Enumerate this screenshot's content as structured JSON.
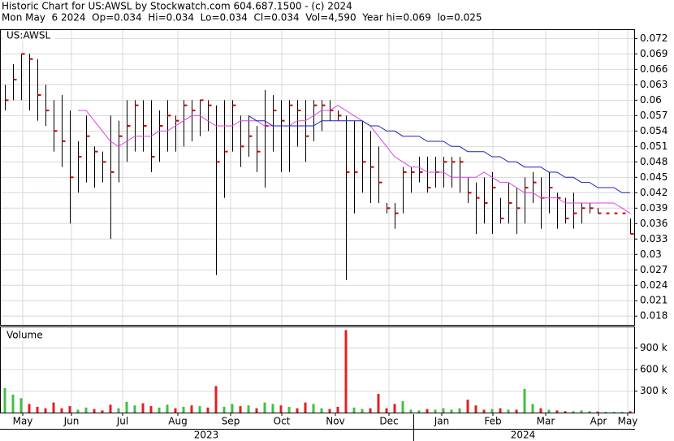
{
  "chart_data": [
    {
      "type": "ohlc",
      "title": "Historic Chart for US:AWSL by Stockwatch.com 604.687.1500 - (c) 2024",
      "subtitle": "Mon May  6 2024  Op=0.034  Hi=0.034  Lo=0.034  Cl=0.034  Vol=4,590  Year hi=0.069  lo=0.025",
      "label": "US:AWSL",
      "ylim": [
        0.0163,
        0.0738
      ],
      "yticks": [
        0.072,
        0.069,
        0.066,
        0.063,
        0.06,
        0.057,
        0.054,
        0.051,
        0.048,
        0.045,
        0.042,
        0.039,
        0.036,
        0.033,
        0.03,
        0.027,
        0.024,
        0.021,
        0.018
      ],
      "xlim": [
        0,
        78
      ],
      "bar_color": "#000000",
      "close_color": "#d00000",
      "high": [
        0.063,
        0.067,
        0.069,
        0.069,
        0.068,
        0.063,
        0.06,
        0.061,
        0.058,
        0.052,
        0.057,
        0.051,
        0.05,
        0.057,
        0.056,
        0.06,
        0.06,
        0.06,
        0.06,
        0.058,
        0.06,
        0.057,
        0.06,
        0.06,
        0.06,
        0.06,
        0.059,
        0.06,
        0.06,
        0.057,
        0.057,
        0.055,
        0.062,
        0.061,
        0.06,
        0.06,
        0.06,
        0.06,
        0.06,
        0.06,
        0.06,
        0.058,
        0.057,
        0.056,
        0.056,
        0.054,
        0.051,
        0.04,
        0.04,
        0.047,
        0.047,
        0.049,
        0.049,
        0.049,
        0.049,
        0.049,
        0.049,
        0.045,
        0.044,
        0.045,
        0.046,
        0.041,
        0.044,
        0.043,
        0.045,
        0.046,
        0.045,
        0.046,
        0.042,
        0.041,
        0.042,
        0.04,
        0.04,
        0.039,
        0.038,
        0.038,
        0.038,
        0.037
      ],
      "low": [
        0.058,
        0.06,
        0.06,
        0.058,
        0.056,
        0.055,
        0.05,
        0.047,
        0.036,
        0.042,
        0.044,
        0.043,
        0.044,
        0.033,
        0.044,
        0.048,
        0.05,
        0.05,
        0.046,
        0.048,
        0.05,
        0.05,
        0.051,
        0.052,
        0.053,
        0.054,
        0.026,
        0.041,
        0.05,
        0.047,
        0.049,
        0.046,
        0.043,
        0.05,
        0.046,
        0.046,
        0.051,
        0.048,
        0.052,
        0.054,
        0.056,
        0.056,
        0.025,
        0.038,
        0.042,
        0.04,
        0.04,
        0.038,
        0.035,
        0.038,
        0.042,
        0.044,
        0.042,
        0.043,
        0.043,
        0.043,
        0.042,
        0.04,
        0.034,
        0.036,
        0.034,
        0.036,
        0.036,
        0.034,
        0.036,
        0.04,
        0.035,
        0.038,
        0.035,
        0.036,
        0.035,
        0.036,
        0.038,
        0.038,
        0.038,
        0.038,
        0.038,
        0.034
      ],
      "close": [
        0.06,
        0.064,
        0.069,
        0.068,
        0.061,
        0.058,
        0.054,
        0.052,
        0.045,
        0.049,
        0.053,
        0.05,
        0.048,
        0.046,
        0.053,
        0.055,
        0.059,
        0.055,
        0.049,
        0.055,
        0.057,
        0.056,
        0.059,
        0.058,
        0.06,
        0.059,
        0.048,
        0.05,
        0.059,
        0.051,
        0.053,
        0.05,
        0.055,
        0.058,
        0.056,
        0.059,
        0.058,
        0.053,
        0.059,
        0.059,
        0.058,
        0.057,
        0.046,
        0.046,
        0.048,
        0.047,
        0.044,
        0.039,
        0.038,
        0.046,
        0.046,
        0.046,
        0.043,
        0.046,
        0.048,
        0.048,
        0.048,
        0.042,
        0.041,
        0.04,
        0.043,
        0.037,
        0.04,
        0.039,
        0.043,
        0.044,
        0.041,
        0.043,
        0.041,
        0.037,
        0.038,
        0.039,
        0.039,
        0.038,
        0.038,
        0.038,
        0.038,
        0.034
      ],
      "lines": [
        {
          "color": "#e040e0",
          "values": [
            null,
            null,
            null,
            null,
            null,
            null,
            null,
            null,
            null,
            0.058,
            0.058,
            0.056,
            0.054,
            0.052,
            0.051,
            0.052,
            0.053,
            0.053,
            0.053,
            0.054,
            0.054,
            0.055,
            0.056,
            0.057,
            0.057,
            0.056,
            0.055,
            0.055,
            0.055,
            0.056,
            0.056,
            0.056,
            0.055,
            0.055,
            0.055,
            0.055,
            0.056,
            0.056,
            0.057,
            0.058,
            0.058,
            0.059,
            0.058,
            0.057,
            0.056,
            0.055,
            0.053,
            0.051,
            0.049,
            0.048,
            0.047,
            0.047,
            0.046,
            0.046,
            0.046,
            0.045,
            0.045,
            0.045,
            0.045,
            0.046,
            0.045,
            0.044,
            0.044,
            0.043,
            0.042,
            0.042,
            0.041,
            0.041,
            0.041,
            0.04,
            0.04,
            0.04,
            0.04,
            0.04,
            0.04,
            0.04,
            0.039,
            0.038
          ]
        },
        {
          "color": "#2020c0",
          "values": [
            null,
            null,
            null,
            null,
            null,
            null,
            null,
            null,
            null,
            null,
            null,
            null,
            null,
            null,
            null,
            null,
            null,
            null,
            null,
            null,
            null,
            null,
            null,
            null,
            null,
            null,
            null,
            null,
            null,
            null,
            0.057,
            0.056,
            0.056,
            0.055,
            0.055,
            0.055,
            0.055,
            0.055,
            0.055,
            0.056,
            0.056,
            0.056,
            0.056,
            0.056,
            0.056,
            0.055,
            0.055,
            0.054,
            0.054,
            0.053,
            0.053,
            0.053,
            0.052,
            0.052,
            0.052,
            0.051,
            0.051,
            0.05,
            0.05,
            0.05,
            0.049,
            0.049,
            0.048,
            0.048,
            0.047,
            0.047,
            0.047,
            0.046,
            0.046,
            0.045,
            0.045,
            0.044,
            0.044,
            0.043,
            0.043,
            0.043,
            0.042,
            0.042
          ]
        }
      ]
    },
    {
      "type": "bar",
      "label": "Volume",
      "ylim": [
        0,
        1200000
      ],
      "yticks": [
        {
          "value": 900000,
          "label": "900 k"
        },
        {
          "value": 600000,
          "label": "600 k"
        },
        {
          "value": 300000,
          "label": "300 k"
        }
      ],
      "xlim": [
        0,
        78
      ],
      "up_color": "#40c040",
      "down_color": "#e02020",
      "values": [
        340000,
        250000,
        200000,
        120000,
        80000,
        60000,
        140000,
        60000,
        90000,
        40000,
        70000,
        50000,
        30000,
        110000,
        60000,
        150000,
        100000,
        130000,
        90000,
        70000,
        110000,
        60000,
        80000,
        100000,
        90000,
        70000,
        370000,
        80000,
        120000,
        90000,
        100000,
        60000,
        140000,
        120000,
        100000,
        80000,
        60000,
        140000,
        120000,
        60000,
        50000,
        80000,
        1150000,
        70000,
        50000,
        60000,
        260000,
        60000,
        120000,
        160000,
        40000,
        30000,
        50000,
        40000,
        60000,
        40000,
        60000,
        180000,
        100000,
        40000,
        50000,
        60000,
        40000,
        40000,
        330000,
        120000,
        60000,
        40000,
        30000,
        20000,
        20000,
        30000,
        20000,
        15000,
        10000,
        10000,
        10000,
        20000
      ],
      "xticks": [
        {
          "value": 2.7,
          "label": "May"
        },
        {
          "value": 8.7,
          "label": "Jun"
        },
        {
          "value": 15,
          "label": "Jul"
        },
        {
          "value": 21.8,
          "label": "Aug"
        },
        {
          "value": 28.3,
          "label": "Sep"
        },
        {
          "value": 34.6,
          "label": "Oct"
        },
        {
          "value": 41.2,
          "label": "Nov"
        },
        {
          "value": 47.8,
          "label": "Dec"
        },
        {
          "value": 54.3,
          "label": "Jan"
        },
        {
          "value": 60.6,
          "label": "Feb"
        },
        {
          "value": 67.1,
          "label": "Mar"
        },
        {
          "value": 73.6,
          "label": "Apr"
        },
        {
          "value": 77.2,
          "label": "May"
        }
      ],
      "year_ticks": [
        {
          "value": 25.3,
          "label": "2023"
        },
        {
          "value": 64.3,
          "label": "2024"
        }
      ]
    }
  ]
}
